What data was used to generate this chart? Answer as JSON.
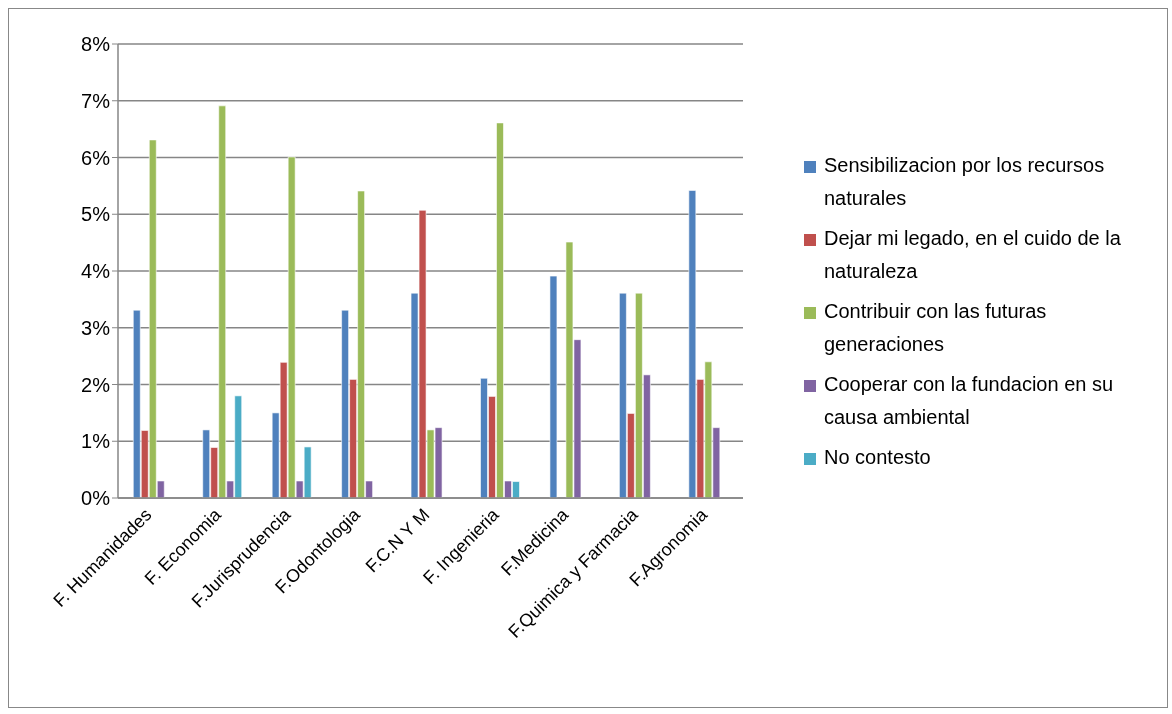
{
  "chart_data": {
    "type": "bar",
    "categories": [
      "F. Humanidades",
      "F. Economia",
      "F.Jurisprudencia",
      "F.Odontologia",
      "F.C.N Y M",
      "F. Ingenieria",
      "F.Medicina",
      "F.Quimica y Farmacia",
      "F.Agronomia"
    ],
    "series": [
      {
        "name": "Sensibilizacion por los recursos naturales",
        "color": "#4f81bd",
        "values": [
          3.31,
          1.2,
          1.5,
          3.31,
          3.61,
          2.11,
          3.91,
          3.61,
          5.42
        ]
      },
      {
        "name": "Dejar mi legado, en el cuido de la naturaleza",
        "color": "#c0504d",
        "values": [
          1.19,
          0.89,
          2.39,
          2.09,
          5.07,
          1.79,
          null,
          1.49,
          2.09
        ]
      },
      {
        "name": "Contribuir con las futuras generaciones",
        "color": "#9bbb59",
        "values": [
          6.31,
          6.91,
          6.01,
          5.41,
          1.2,
          6.61,
          4.51,
          3.61,
          2.4
        ]
      },
      {
        "name": "Cooperar con la fundacion en su causa ambiental",
        "color": "#8064a2",
        "values": [
          0.3,
          0.3,
          0.3,
          0.3,
          1.24,
          0.3,
          2.79,
          2.17,
          1.24
        ]
      },
      {
        "name": "No contesto",
        "color": "#4bacc6",
        "values": [
          null,
          1.8,
          0.9,
          null,
          null,
          0.29,
          null,
          null,
          null
        ]
      }
    ],
    "ylim": [
      0,
      8
    ],
    "yticks": [
      {
        "value": 0,
        "label": "0%"
      },
      {
        "value": 1,
        "label": "1%"
      },
      {
        "value": 2,
        "label": "2%"
      },
      {
        "value": 3,
        "label": "3%"
      },
      {
        "value": 4,
        "label": "4%"
      },
      {
        "value": 5,
        "label": "5%"
      },
      {
        "value": 6,
        "label": "6%"
      },
      {
        "value": 7,
        "label": "7%"
      },
      {
        "value": 8,
        "label": "8%"
      }
    ],
    "grid": "y",
    "legend": "right"
  }
}
